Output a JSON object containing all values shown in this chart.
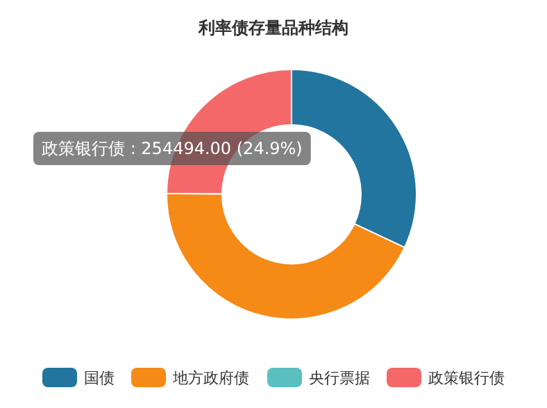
{
  "chart_data": {
    "type": "donut",
    "title": "利率债存量品种结构",
    "categories": [
      "国债",
      "地方政府债",
      "央行票据",
      "政策银行债"
    ],
    "values": [
      32.0,
      43.1,
      0,
      24.9
    ],
    "colors": [
      "#21759f",
      "#f58a17",
      "#5cbfbf",
      "#f4686a"
    ],
    "annotations": [
      "政策银行债 : 254494.00 (24.9%)"
    ],
    "legend": "bottom"
  }
}
